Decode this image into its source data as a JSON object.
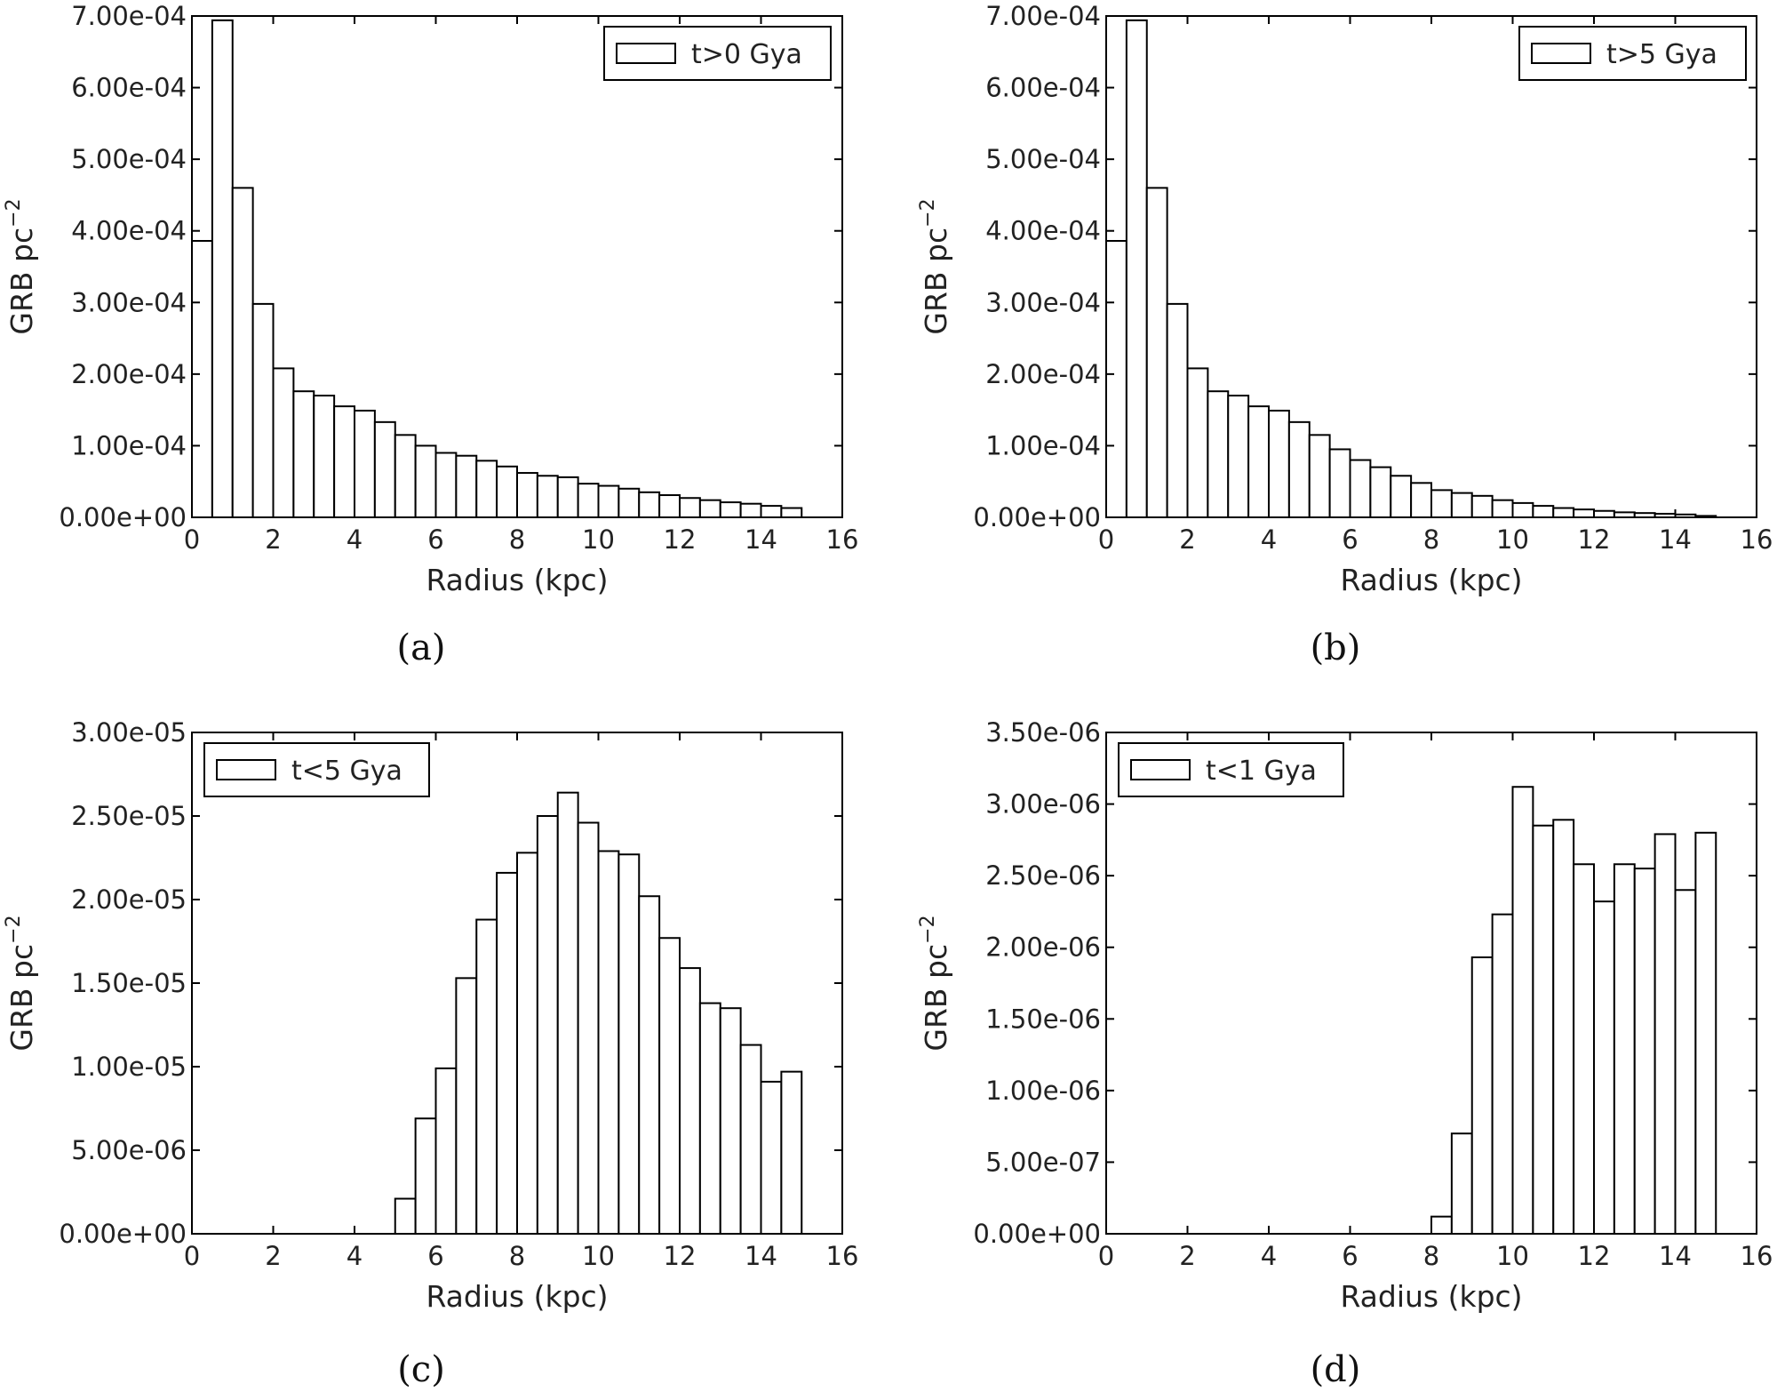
{
  "chart_data": [
    {
      "type": "bar",
      "panel_label": "(a)",
      "legend": "t>0 Gya",
      "legend_position": "top-right",
      "xlabel": "Radius (kpc)",
      "ylabel": "GRB pc",
      "ylabel_exponent": "−2",
      "xlim": [
        0,
        16
      ],
      "ylim": [
        0,
        0.0007
      ],
      "xticks": [
        "0",
        "2",
        "4",
        "6",
        "8",
        "10",
        "12",
        "14",
        "16"
      ],
      "yticks": [
        "0.00e+00",
        "1.00e-04",
        "2.00e-04",
        "3.00e-04",
        "4.00e-04",
        "5.00e-04",
        "6.00e-04",
        "7.00e-04"
      ],
      "bin_edges": [
        0,
        0.5,
        1,
        1.5,
        2,
        2.5,
        3,
        3.5,
        4,
        4.5,
        5,
        5.5,
        6,
        6.5,
        7,
        7.5,
        8,
        8.5,
        9,
        9.5,
        10,
        10.5,
        11,
        11.5,
        12,
        12.5,
        13,
        13.5,
        14,
        14.5,
        15
      ],
      "values": [
        0.000386,
        0.000694,
        0.00046,
        0.000298,
        0.000208,
        0.000176,
        0.00017,
        0.000155,
        0.000149,
        0.000133,
        0.000115,
        0.0001,
        9e-05,
        8.6e-05,
        7.9e-05,
        7.1e-05,
        6.2e-05,
        5.8e-05,
        5.6e-05,
        4.7e-05,
        4.4e-05,
        4e-05,
        3.5e-05,
        3.1e-05,
        2.7e-05,
        2.4e-05,
        2.1e-05,
        1.9e-05,
        1.6e-05,
        1.3e-05
      ]
    },
    {
      "type": "bar",
      "panel_label": "(b)",
      "legend": "t>5 Gya",
      "legend_position": "top-right",
      "xlabel": "Radius (kpc)",
      "ylabel": "GRB pc",
      "ylabel_exponent": "−2",
      "xlim": [
        0,
        16
      ],
      "ylim": [
        0,
        0.0007
      ],
      "xticks": [
        "0",
        "2",
        "4",
        "6",
        "8",
        "10",
        "12",
        "14",
        "16"
      ],
      "yticks": [
        "0.00e+00",
        "1.00e-04",
        "2.00e-04",
        "3.00e-04",
        "4.00e-04",
        "5.00e-04",
        "6.00e-04",
        "7.00e-04"
      ],
      "bin_edges": [
        0,
        0.5,
        1,
        1.5,
        2,
        2.5,
        3,
        3.5,
        4,
        4.5,
        5,
        5.5,
        6,
        6.5,
        7,
        7.5,
        8,
        8.5,
        9,
        9.5,
        10,
        10.5,
        11,
        11.5,
        12,
        12.5,
        13,
        13.5,
        14,
        14.5,
        15
      ],
      "values": [
        0.000386,
        0.000694,
        0.00046,
        0.000298,
        0.000208,
        0.000176,
        0.00017,
        0.000155,
        0.000149,
        0.000133,
        0.000115,
        9.5e-05,
        8e-05,
        7e-05,
        5.8e-05,
        4.8e-05,
        3.8e-05,
        3.4e-05,
        3e-05,
        2.4e-05,
        2e-05,
        1.6e-05,
        1.3e-05,
        1.1e-05,
        9e-06,
        7e-06,
        6e-06,
        5e-06,
        4e-06,
        2e-06
      ]
    },
    {
      "type": "bar",
      "panel_label": "(c)",
      "legend": "t<5 Gya",
      "legend_position": "top-left",
      "xlabel": "Radius (kpc)",
      "ylabel": "GRB pc",
      "ylabel_exponent": "−2",
      "xlim": [
        0,
        16
      ],
      "ylim": [
        0,
        3e-05
      ],
      "xticks": [
        "0",
        "2",
        "4",
        "6",
        "8",
        "10",
        "12",
        "14",
        "16"
      ],
      "yticks": [
        "0.00e+00",
        "5.00e-06",
        "1.00e-05",
        "1.50e-05",
        "2.00e-05",
        "2.50e-05",
        "3.00e-05"
      ],
      "bin_edges": [
        0,
        0.5,
        1,
        1.5,
        2,
        2.5,
        3,
        3.5,
        4,
        4.5,
        5,
        5.5,
        6,
        6.5,
        7,
        7.5,
        8,
        8.5,
        9,
        9.5,
        10,
        10.5,
        11,
        11.5,
        12,
        12.5,
        13,
        13.5,
        14,
        14.5,
        15
      ],
      "values": [
        0,
        0,
        0,
        0,
        0,
        0,
        0,
        0,
        0,
        0,
        2.1e-06,
        6.9e-06,
        9.9e-06,
        1.53e-05,
        1.88e-05,
        2.16e-05,
        2.28e-05,
        2.5e-05,
        2.64e-05,
        2.46e-05,
        2.29e-05,
        2.27e-05,
        2.02e-05,
        1.77e-05,
        1.59e-05,
        1.38e-05,
        1.35e-05,
        1.13e-05,
        9.1e-06,
        9.7e-06
      ]
    },
    {
      "type": "bar",
      "panel_label": "(d)",
      "legend": "t<1 Gya",
      "legend_position": "top-left",
      "xlabel": "Radius (kpc)",
      "ylabel": "GRB pc",
      "ylabel_exponent": "−2",
      "xlim": [
        0,
        16
      ],
      "ylim": [
        0,
        3.5e-06
      ],
      "xticks": [
        "0",
        "2",
        "4",
        "6",
        "8",
        "10",
        "12",
        "14",
        "16"
      ],
      "yticks": [
        "0.00e+00",
        "5.00e-07",
        "1.00e-06",
        "1.50e-06",
        "2.00e-06",
        "2.50e-06",
        "3.00e-06",
        "3.50e-06"
      ],
      "bin_edges": [
        0,
        0.5,
        1,
        1.5,
        2,
        2.5,
        3,
        3.5,
        4,
        4.5,
        5,
        5.5,
        6,
        6.5,
        7,
        7.5,
        8,
        8.5,
        9,
        9.5,
        10,
        10.5,
        11,
        11.5,
        12,
        12.5,
        13,
        13.5,
        14,
        14.5,
        15
      ],
      "values": [
        0,
        0,
        0,
        0,
        0,
        0,
        0,
        0,
        0,
        0,
        0,
        0,
        0,
        0,
        0,
        0,
        1.2e-07,
        7e-07,
        1.93e-06,
        2.23e-06,
        3.12e-06,
        2.85e-06,
        2.89e-06,
        2.58e-06,
        2.32e-06,
        2.58e-06,
        2.55e-06,
        2.79e-06,
        2.4e-06,
        2.8e-06
      ]
    }
  ]
}
